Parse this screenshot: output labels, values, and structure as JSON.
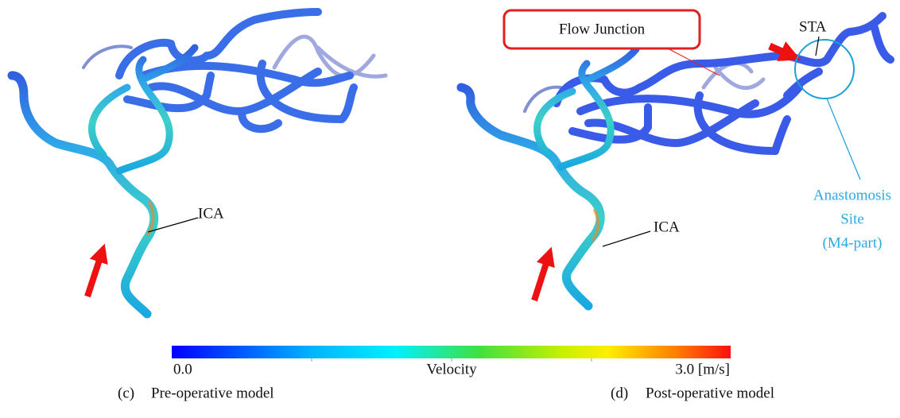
{
  "left_panel": {
    "caption_label": "(c)",
    "caption": "Pre-operative model",
    "annotations": {
      "ica": "ICA"
    }
  },
  "right_panel": {
    "caption_label": "(d)",
    "caption": "Post-operative model",
    "annotations": {
      "flow_junction": "Flow Junction",
      "sta": "STA",
      "ica": "ICA",
      "anastomosis": [
        "Anastomosis",
        "Site",
        "(M4-part)"
      ]
    }
  },
  "colorbar": {
    "min_label": "0.0",
    "title": "Velocity",
    "max_label": "3.0 [m/s]"
  }
}
